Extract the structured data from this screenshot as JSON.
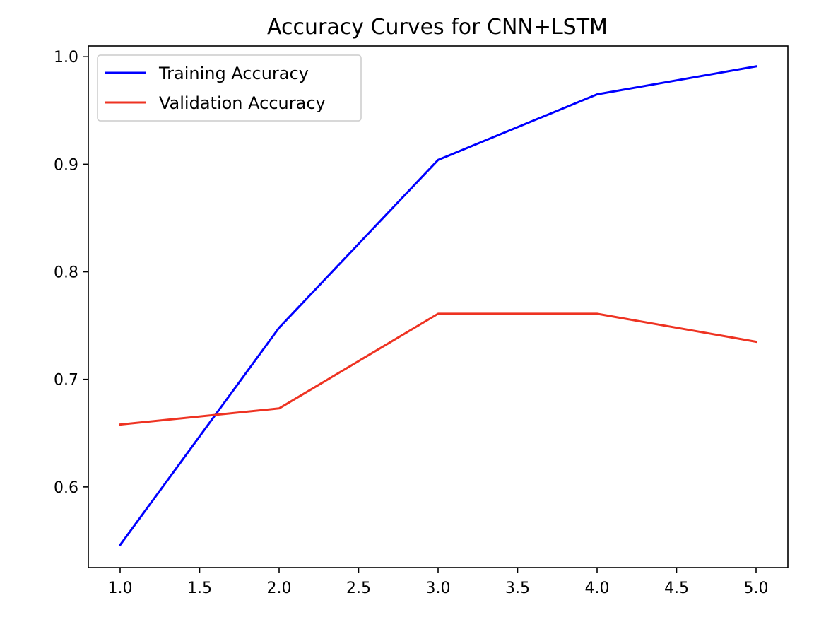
{
  "chart_data": {
    "type": "line",
    "title": "Accuracy Curves for CNN+LSTM",
    "xlabel": "",
    "ylabel": "",
    "x": [
      1.0,
      2.0,
      3.0,
      4.0,
      5.0
    ],
    "series": [
      {
        "name": "Training Accuracy",
        "color": "#0000ff",
        "values": [
          0.546,
          0.748,
          0.904,
          0.965,
          0.991
        ]
      },
      {
        "name": "Validation Accuracy",
        "color": "#ee3322",
        "values": [
          0.658,
          0.673,
          0.761,
          0.761,
          0.735
        ]
      }
    ],
    "xlim": [
      0.8,
      5.2
    ],
    "ylim": [
      0.525,
      1.01
    ],
    "xticks": [
      1.0,
      1.5,
      2.0,
      2.5,
      3.0,
      3.5,
      4.0,
      4.5,
      5.0
    ],
    "xtick_labels": [
      "1.0",
      "1.5",
      "2.0",
      "2.5",
      "3.0",
      "3.5",
      "4.0",
      "4.5",
      "5.0"
    ],
    "yticks": [
      0.6,
      0.7,
      0.8,
      0.9,
      1.0
    ],
    "ytick_labels": [
      "0.6",
      "0.7",
      "0.8",
      "0.9",
      "1.0"
    ],
    "grid": false,
    "legend_position": "top-left"
  }
}
